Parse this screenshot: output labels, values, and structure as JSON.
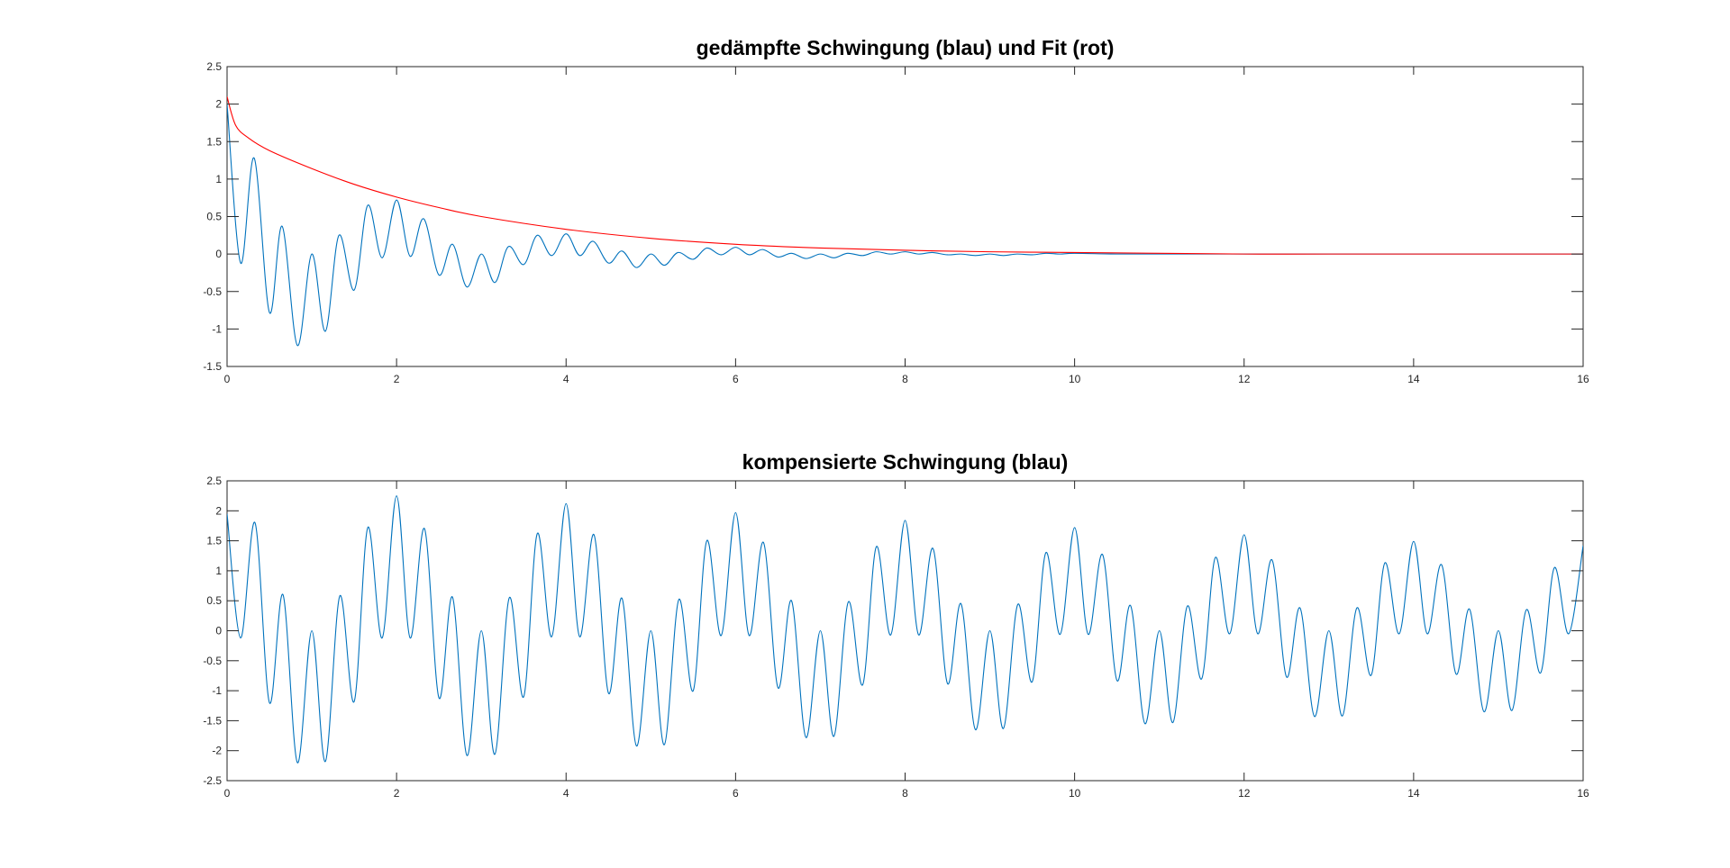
{
  "chart_data": [
    {
      "type": "line",
      "title": "gedämpfte Schwingung (blau) und Fit (rot)",
      "xlabel": "",
      "ylabel": "",
      "xlim": [
        0,
        16
      ],
      "ylim": [
        -1.5,
        2.5
      ],
      "xticks": [
        0,
        2,
        4,
        6,
        8,
        10,
        12,
        14,
        16
      ],
      "yticks": [
        -1.5,
        -1,
        -0.5,
        0,
        0.5,
        1,
        1.5,
        2,
        2.5
      ],
      "xtick_labels": [
        "0",
        "2",
        "4",
        "6",
        "8",
        "10",
        "12",
        "14",
        "16"
      ],
      "ytick_labels": [
        "-1.5",
        "-1",
        "-0.5",
        "0",
        "0.5",
        "1",
        "1.5",
        "2",
        "2.5"
      ],
      "grid": false,
      "legend": "none",
      "series": [
        {
          "color": "#0072BD",
          "x": [
            0,
            0.16,
            0.32,
            0.5,
            0.65,
            0.83,
            1.0,
            1.16,
            1.32,
            1.5,
            1.66,
            1.83,
            2.0,
            2.16,
            2.32,
            2.5,
            2.66,
            2.83,
            3.0,
            3.16,
            3.32,
            3.5,
            3.66,
            3.83,
            4.0,
            4.16,
            4.32,
            4.5,
            4.66,
            4.83,
            5.0,
            5.16,
            5.32,
            5.5,
            5.66,
            5.83,
            6.0,
            6.16,
            6.32,
            6.5,
            6.66,
            6.83,
            7.0,
            7.16,
            7.32,
            7.5,
            7.66,
            7.83,
            8.0,
            8.16,
            8.32,
            8.5,
            8.66,
            8.83,
            9.0,
            9.16,
            9.32,
            9.5,
            9.66,
            9.83,
            10.0,
            10.5,
            11.0,
            11.5,
            12.0,
            12.5,
            13.0,
            13.5,
            14.0,
            14.5,
            15.0,
            15.5,
            16.0
          ],
          "y": [
            2.0,
            -0.12,
            1.28,
            -0.78,
            0.37,
            -1.22,
            0.0,
            -1.03,
            0.25,
            -0.48,
            0.65,
            -0.05,
            0.72,
            -0.03,
            0.47,
            -0.28,
            0.13,
            -0.44,
            0.0,
            -0.38,
            0.1,
            -0.14,
            0.25,
            -0.02,
            0.27,
            -0.02,
            0.17,
            -0.12,
            0.04,
            -0.18,
            0.0,
            -0.15,
            0.02,
            -0.07,
            0.08,
            -0.01,
            0.09,
            -0.01,
            0.06,
            -0.04,
            0.01,
            -0.06,
            0.0,
            -0.05,
            0.01,
            -0.02,
            0.03,
            0.0,
            0.03,
            0.0,
            0.02,
            -0.01,
            0.0,
            -0.02,
            0.0,
            -0.02,
            0.0,
            -0.01,
            0.01,
            0.0,
            0.01,
            0.0,
            0.0,
            0.0,
            0.0,
            0.0,
            0.0,
            0.0,
            0.0,
            0.0,
            0.0,
            0.0,
            0.0
          ]
        },
        {
          "color": "#FF0000",
          "x": [
            0,
            0.1,
            0.25,
            0.5,
            1,
            1.5,
            2,
            2.5,
            3,
            4,
            5,
            6,
            7,
            8,
            9,
            10,
            11,
            12,
            13,
            14,
            15,
            16
          ],
          "y": [
            2.1,
            1.72,
            1.55,
            1.38,
            1.14,
            0.93,
            0.76,
            0.62,
            0.5,
            0.33,
            0.21,
            0.13,
            0.08,
            0.05,
            0.03,
            0.02,
            0.01,
            0.0,
            0.0,
            0.0,
            0.0,
            0.0
          ]
        }
      ]
    },
    {
      "type": "line",
      "title": "kompensierte Schwingung (blau)",
      "xlabel": "",
      "ylabel": "",
      "xlim": [
        0,
        16
      ],
      "ylim": [
        -2.5,
        2.5
      ],
      "xticks": [
        0,
        2,
        4,
        6,
        8,
        10,
        12,
        14,
        16
      ],
      "yticks": [
        -2.5,
        -2,
        -1.5,
        -1,
        -0.5,
        0,
        0.5,
        1,
        1.5,
        2,
        2.5
      ],
      "xtick_labels": [
        "0",
        "2",
        "4",
        "6",
        "8",
        "10",
        "12",
        "14",
        "16"
      ],
      "ytick_labels": [
        "-2.5",
        "-2",
        "-1.5",
        "-1",
        "-0.5",
        "0",
        "0.5",
        "1",
        "1.5",
        "2",
        "2.5"
      ],
      "grid": false,
      "legend": "none",
      "series": [
        {
          "color": "#0072BD",
          "x": [
            0,
            0.16,
            0.33,
            0.5,
            0.66,
            0.83,
            1.0,
            1.16,
            1.33,
            1.5,
            1.66,
            1.83,
            2.0,
            2.16,
            2.33,
            2.5,
            2.66,
            2.83,
            3.0,
            3.16,
            3.33,
            3.5,
            3.66,
            3.83,
            4.0,
            4.16,
            4.33,
            4.5,
            4.66,
            4.83,
            5.0,
            5.16,
            5.33,
            5.5,
            5.66,
            5.83,
            6.0,
            6.16,
            6.33,
            6.5,
            6.66,
            6.83,
            7.0,
            7.16,
            7.33,
            7.5,
            7.66,
            7.83,
            8.0,
            8.16,
            8.33,
            8.5,
            8.66,
            8.83,
            9.0,
            9.16,
            9.33,
            9.5,
            9.66,
            9.83,
            10.0,
            10.16,
            10.33,
            10.5,
            10.66,
            10.83,
            11.0,
            11.16,
            11.33,
            11.5,
            11.66,
            11.83,
            12.0,
            12.16,
            12.33,
            12.5,
            12.66,
            12.83,
            13.0,
            13.16,
            13.33,
            13.5,
            13.66,
            13.83,
            14.0,
            14.16,
            14.33,
            14.5,
            14.66,
            14.83,
            15.0,
            15.16,
            15.33,
            15.5,
            15.66,
            15.83,
            16.0
          ],
          "y": [
            1.95,
            -0.12,
            1.8,
            -1.2,
            0.6,
            -2.2,
            0.0,
            -2.18,
            0.58,
            -1.18,
            1.72,
            -0.12,
            2.25,
            -0.12,
            1.7,
            -1.12,
            0.56,
            -2.08,
            0.0,
            -2.06,
            0.55,
            -1.1,
            1.62,
            -0.1,
            2.12,
            -0.1,
            1.6,
            -1.04,
            0.54,
            -1.92,
            0.0,
            -1.9,
            0.52,
            -1.0,
            1.5,
            -0.08,
            1.97,
            -0.08,
            1.47,
            -0.95,
            0.5,
            -1.78,
            0.0,
            -1.76,
            0.48,
            -0.9,
            1.4,
            -0.07,
            1.84,
            -0.07,
            1.37,
            -0.88,
            0.45,
            -1.65,
            0.0,
            -1.63,
            0.44,
            -0.85,
            1.3,
            -0.06,
            1.72,
            -0.06,
            1.27,
            -0.83,
            0.42,
            -1.55,
            0.0,
            -1.53,
            0.41,
            -0.8,
            1.22,
            -0.05,
            1.6,
            -0.05,
            1.18,
            -0.77,
            0.38,
            -1.43,
            0.0,
            -1.42,
            0.38,
            -0.74,
            1.13,
            -0.05,
            1.49,
            -0.05,
            1.1,
            -0.72,
            0.36,
            -1.35,
            0.0,
            -1.33,
            0.35,
            -0.7,
            1.05,
            -0.05,
            1.42
          ]
        }
      ]
    }
  ]
}
